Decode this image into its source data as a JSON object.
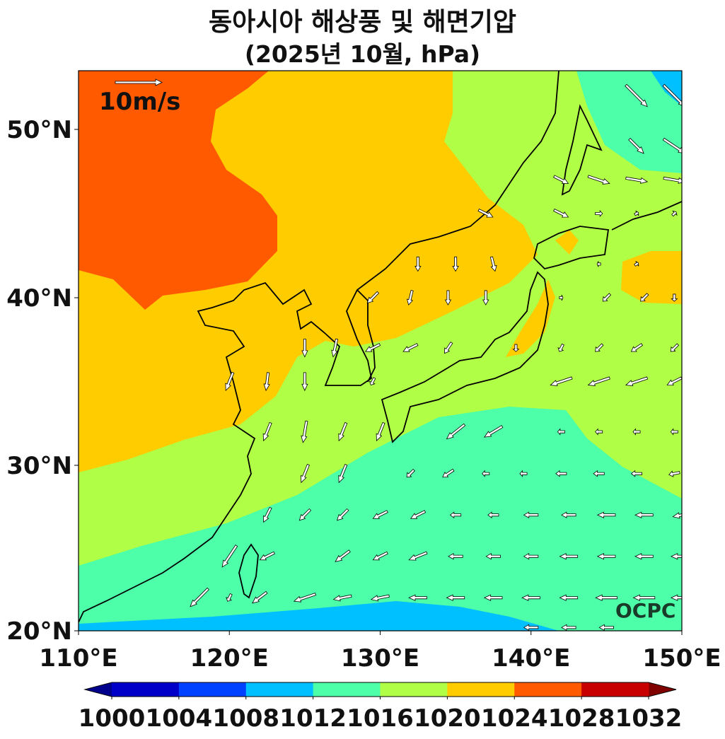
{
  "title": "동아시아 해상풍 및 해면기압",
  "subtitle": "(2025년 10월, hPa)",
  "wind_key_label": "10m/s",
  "logo_text": "OCPC",
  "chart_data": {
    "type": "filled-contour map with wind vectors",
    "x_ticks": [
      "110°E",
      "120°E",
      "130°E",
      "140°E",
      "150°E"
    ],
    "y_ticks": [
      "20°N",
      "30°N",
      "40°N",
      "50°N"
    ],
    "lon_range": [
      110,
      150
    ],
    "lat_range": [
      20,
      53.5
    ],
    "colorbar": {
      "levels": [
        "1000",
        "1004",
        "1008",
        "1012",
        "1016",
        "1020",
        "1024",
        "1028",
        "1032"
      ],
      "colors": [
        "#0000c8",
        "#0041ff",
        "#00c0ff",
        "#4cffa8",
        "#b0ff46",
        "#ffcc00",
        "#ff5a00",
        "#c80000"
      ],
      "under_color": "#00008c",
      "over_color": "#800000",
      "extend": "both"
    },
    "wind_key_speed_ms": 10,
    "wind_vectors": [
      [
        147,
        52,
        3,
        -3
      ],
      [
        149.5,
        52,
        3,
        -3
      ],
      [
        147,
        49,
        2,
        -2
      ],
      [
        149.5,
        49,
        3,
        -2
      ],
      [
        142,
        47,
        2,
        -1
      ],
      [
        144.5,
        47,
        3,
        -1
      ],
      [
        147,
        47,
        3,
        -0.5
      ],
      [
        149.5,
        47,
        3,
        -0.5
      ],
      [
        137,
        45,
        2,
        -1
      ],
      [
        142,
        45,
        2,
        -1
      ],
      [
        144.5,
        45,
        1,
        0
      ],
      [
        147,
        45,
        0.5,
        0.3
      ],
      [
        149.5,
        45,
        0.5,
        0.5
      ],
      [
        132.5,
        42,
        0,
        -2
      ],
      [
        135,
        42,
        0,
        -2
      ],
      [
        137.5,
        42,
        0.5,
        -2
      ],
      [
        144.5,
        42,
        -0.5,
        0
      ],
      [
        147,
        42,
        0.5,
        0.3
      ],
      [
        129.5,
        40,
        -1.5,
        -1.5
      ],
      [
        132,
        40,
        -0.5,
        -2
      ],
      [
        134.5,
        40,
        0,
        -2
      ],
      [
        137,
        40,
        0,
        -2
      ],
      [
        142,
        40,
        0.5,
        0
      ],
      [
        145,
        40,
        -1,
        -1
      ],
      [
        147.5,
        40,
        -1,
        -1
      ],
      [
        149.5,
        40,
        0,
        -1
      ],
      [
        125,
        37,
        0,
        -2.5
      ],
      [
        127,
        37,
        -0.5,
        -2.5
      ],
      [
        129.5,
        37,
        -2,
        -1
      ],
      [
        132,
        37,
        -2,
        -1
      ],
      [
        134.5,
        37,
        -1,
        -1.5
      ],
      [
        139,
        37,
        0,
        -1
      ],
      [
        142,
        37,
        -0.5,
        -1
      ],
      [
        144.5,
        37,
        -1,
        -1
      ],
      [
        147,
        37,
        -1.5,
        -1
      ],
      [
        149.5,
        37,
        -1,
        -1
      ],
      [
        120,
        35,
        -1,
        -2.5
      ],
      [
        122.5,
        35,
        -0.3,
        -2.5
      ],
      [
        125,
        35,
        0,
        -2.5
      ],
      [
        129.5,
        35,
        -0.5,
        -1
      ],
      [
        142,
        35,
        -3,
        -1
      ],
      [
        144.5,
        35,
        -3,
        -1
      ],
      [
        147,
        35,
        -3,
        -1
      ],
      [
        149.5,
        35,
        -2,
        -1
      ],
      [
        122.5,
        32,
        -1,
        -2.5
      ],
      [
        125,
        32,
        -0.5,
        -3
      ],
      [
        127.5,
        32,
        -1,
        -2.5
      ],
      [
        130,
        32,
        -1,
        -2.5
      ],
      [
        135,
        32,
        -2.5,
        -2
      ],
      [
        137.5,
        32,
        -2.5,
        -1.5
      ],
      [
        142,
        32,
        -1,
        0
      ],
      [
        144.5,
        32,
        -1,
        0
      ],
      [
        147,
        32,
        -1,
        0
      ],
      [
        149.5,
        32,
        -1,
        0
      ],
      [
        125,
        29.5,
        -1,
        -2.5
      ],
      [
        127.5,
        29.5,
        -1,
        -2.5
      ],
      [
        132,
        29.5,
        -1,
        -1
      ],
      [
        134.5,
        29.5,
        -1.5,
        -1
      ],
      [
        137,
        29.5,
        -1,
        0
      ],
      [
        139.5,
        29.5,
        -1,
        0
      ],
      [
        142,
        29.5,
        -1.5,
        0
      ],
      [
        144.5,
        29.5,
        -1.5,
        0
      ],
      [
        147,
        29.5,
        -1.5,
        0
      ],
      [
        149.5,
        29.5,
        -1.5,
        -0.3
      ],
      [
        122.5,
        27,
        -1,
        -2
      ],
      [
        125,
        27,
        -1.5,
        -1.5
      ],
      [
        127.5,
        27,
        -1.5,
        -1.5
      ],
      [
        130,
        27,
        -2,
        -1
      ],
      [
        132.5,
        27,
        -2,
        -1
      ],
      [
        135,
        27,
        -1.5,
        0
      ],
      [
        137.5,
        27,
        -1.5,
        0
      ],
      [
        140,
        27,
        -2,
        0
      ],
      [
        142.5,
        27,
        -2,
        0
      ],
      [
        145,
        27,
        -2.5,
        0
      ],
      [
        147.5,
        27,
        -2.5,
        0
      ],
      [
        150,
        27,
        -2.5,
        -0.5
      ],
      [
        120,
        24.5,
        -2,
        -3
      ],
      [
        122.5,
        24.5,
        -2,
        -1
      ],
      [
        127.5,
        24.5,
        -2,
        -1.5
      ],
      [
        130,
        24.5,
        -2,
        -1
      ],
      [
        132.5,
        24.5,
        -2.5,
        -1
      ],
      [
        135,
        24.5,
        -2,
        0
      ],
      [
        137.5,
        24.5,
        -2,
        0
      ],
      [
        140,
        24.5,
        -2,
        0
      ],
      [
        142.5,
        24.5,
        -2.5,
        0
      ],
      [
        145,
        24.5,
        -2.5,
        0
      ],
      [
        147.5,
        24.5,
        -2.5,
        0
      ],
      [
        150,
        24.5,
        -3,
        0
      ],
      [
        118,
        22,
        -2.5,
        -2.5
      ],
      [
        120,
        22,
        -0.5,
        -1
      ],
      [
        122,
        22,
        -2,
        -1.5
      ],
      [
        125,
        22,
        -3,
        -1
      ],
      [
        127.5,
        22,
        -2.5,
        -0.5
      ],
      [
        130,
        22,
        -2.5,
        -0.5
      ],
      [
        132.5,
        22,
        -2.5,
        0
      ],
      [
        135,
        22,
        -2.5,
        0
      ],
      [
        137.5,
        22,
        -2.5,
        0
      ],
      [
        140,
        22,
        -2.5,
        0
      ],
      [
        142.5,
        22,
        -2.5,
        0
      ],
      [
        145,
        22,
        -3,
        0
      ],
      [
        147.5,
        22,
        -3,
        0
      ],
      [
        150,
        22,
        -3,
        0
      ],
      [
        140,
        20.2,
        -2,
        0
      ],
      [
        142.5,
        20.2,
        -2,
        0
      ],
      [
        145,
        20.2,
        -2,
        0
      ]
    ]
  }
}
